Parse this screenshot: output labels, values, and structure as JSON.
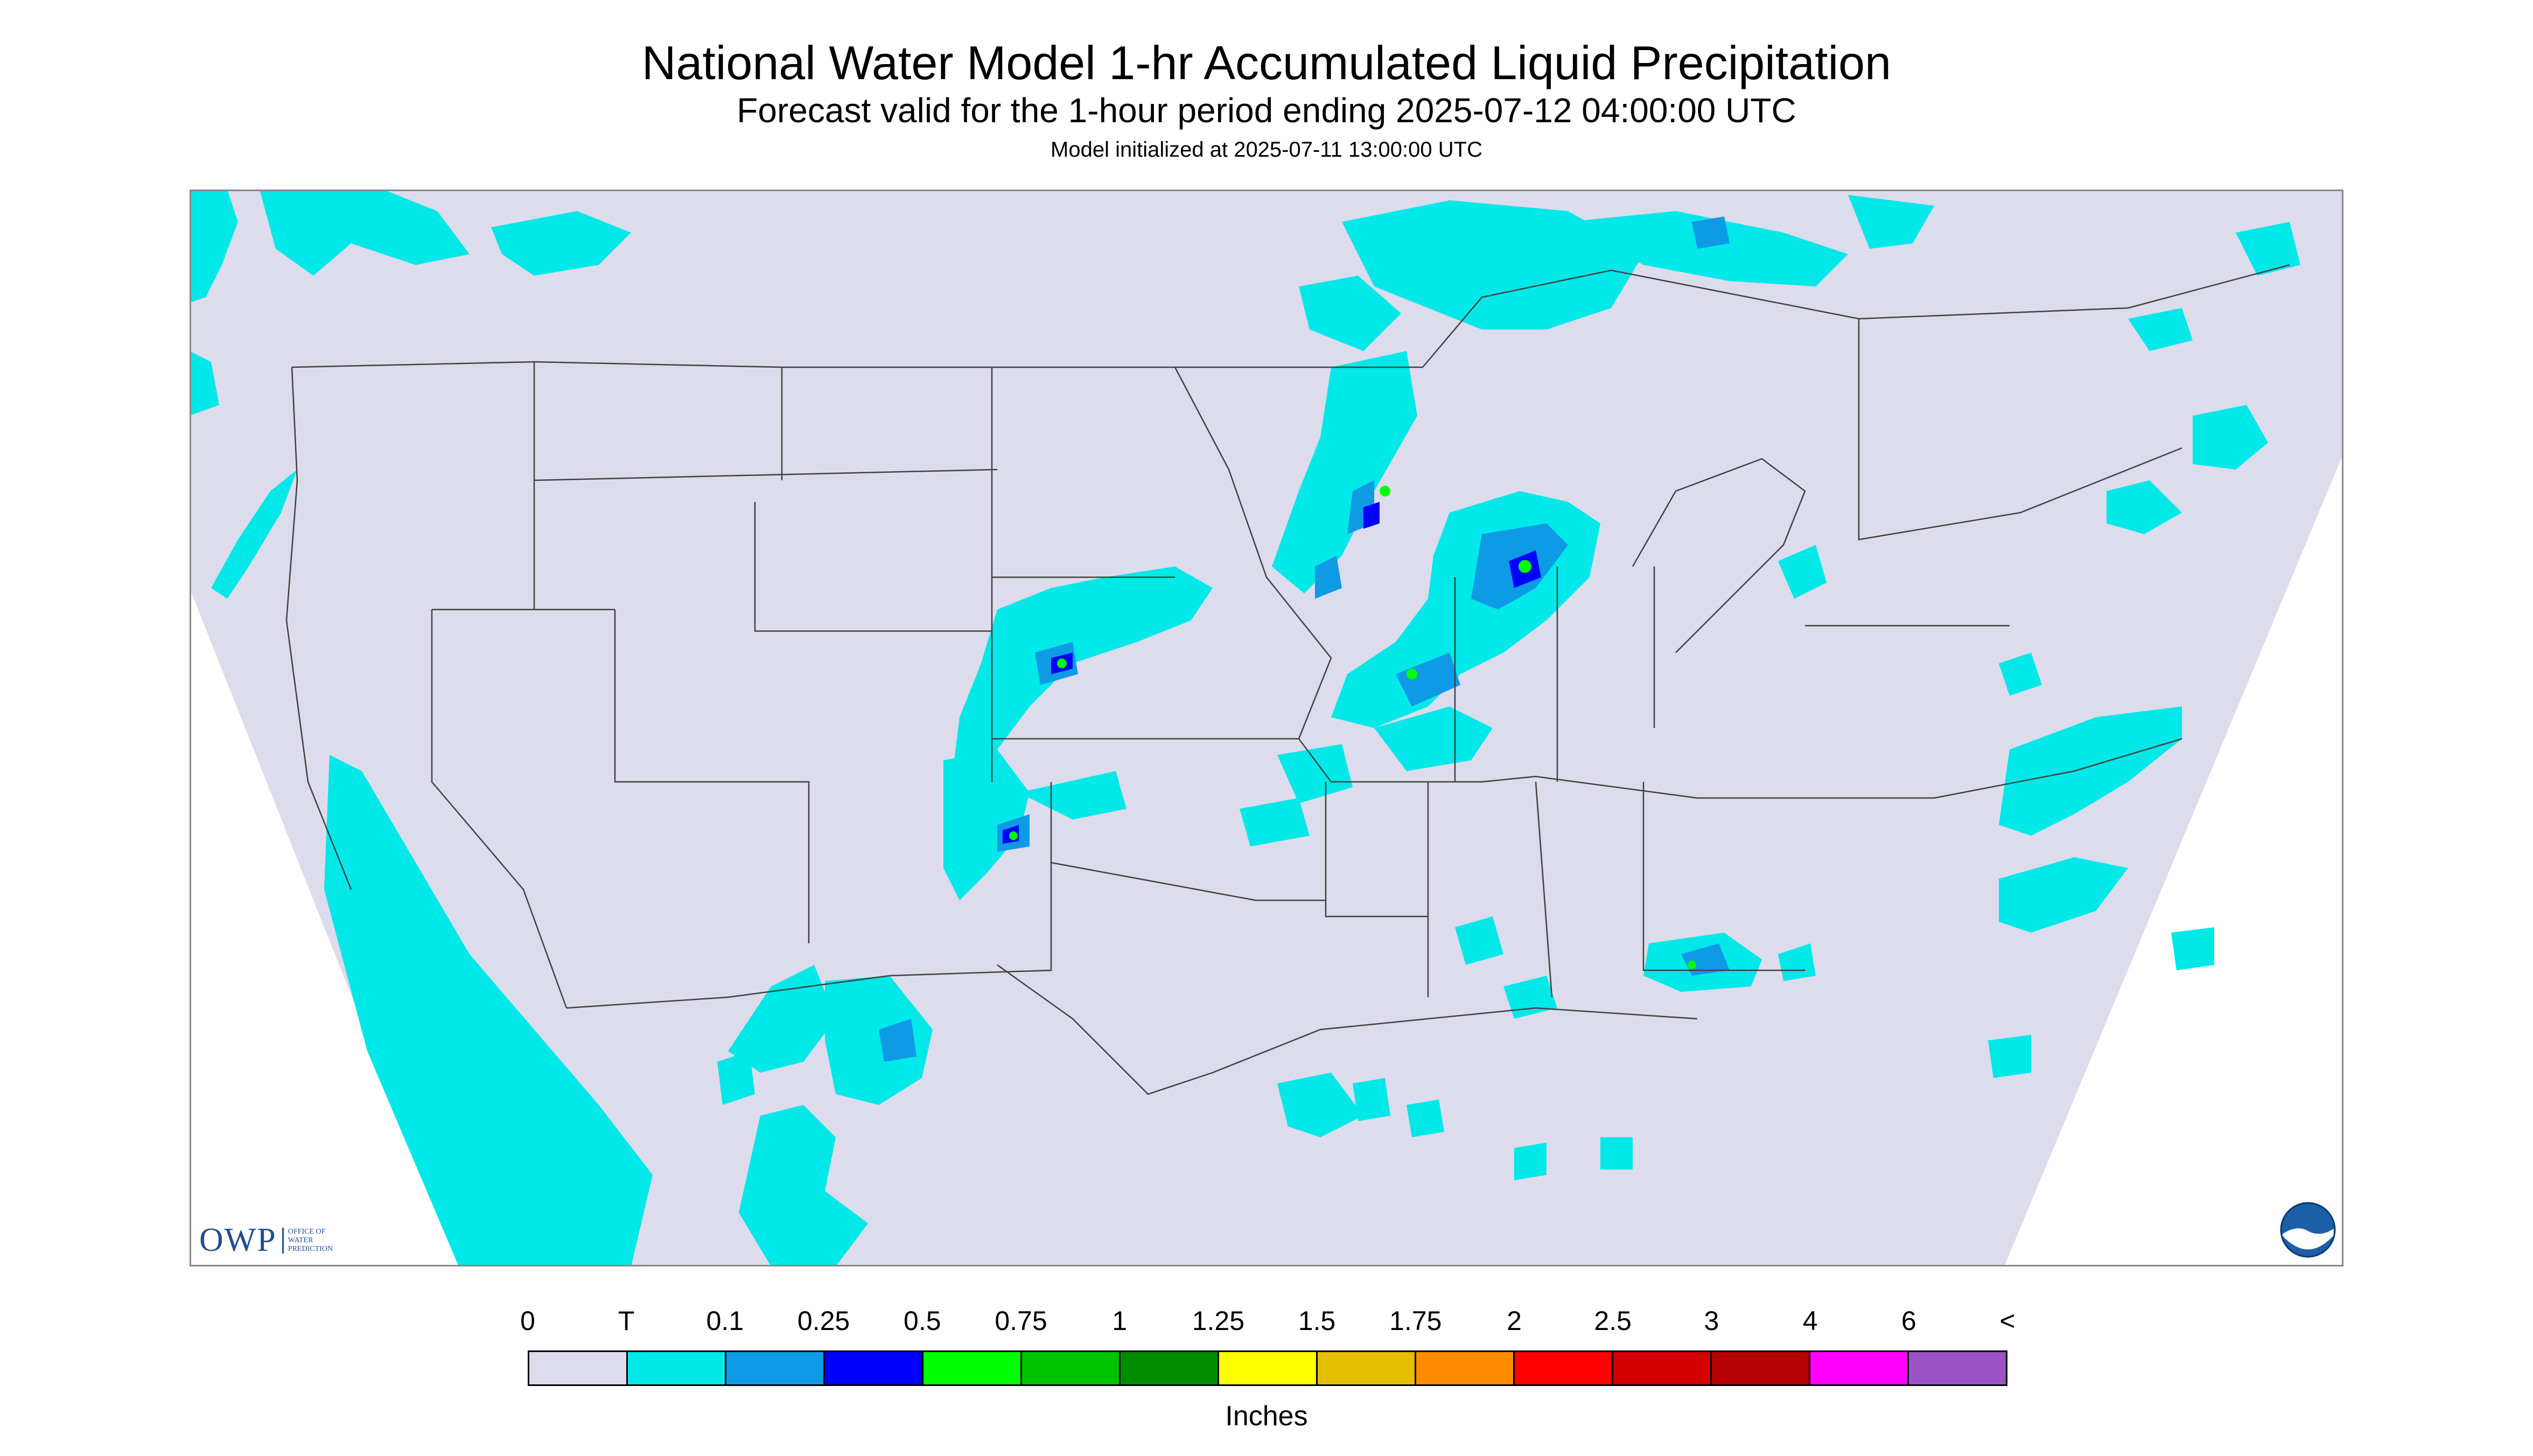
{
  "title": "National Water Model 1-hr Accumulated Liquid Precipitation",
  "subtitle": "Forecast valid for the 1-hour period ending 2025-07-12 04:00:00 UTC",
  "init_line": "Model initialized at 2025-07-11 13:00:00 UTC",
  "legend": {
    "labels": [
      "0",
      "T",
      "0.1",
      "0.25",
      "0.5",
      "0.75",
      "1",
      "1.25",
      "1.5",
      "1.75",
      "2",
      "2.5",
      "3",
      "4",
      "6",
      "<"
    ],
    "colors": [
      "#dcdcec",
      "#00e8e8",
      "#0f9ae6",
      "#0000ff",
      "#00ff00",
      "#00c400",
      "#008c00",
      "#ffff00",
      "#e3bf00",
      "#ff8c00",
      "#ff0000",
      "#d20000",
      "#b40000",
      "#ff00ff",
      "#9a52c4"
    ],
    "units": "Inches"
  },
  "logos": {
    "owp_text": "OWP",
    "owp_subtitle": [
      "OFFICE OF",
      "WATER",
      "PREDICTION"
    ],
    "noaa_text": "NOAA"
  },
  "map": {
    "background_color": "#dcdcec",
    "outside_color": "#ffffff",
    "boundary_color": "#404040"
  }
}
